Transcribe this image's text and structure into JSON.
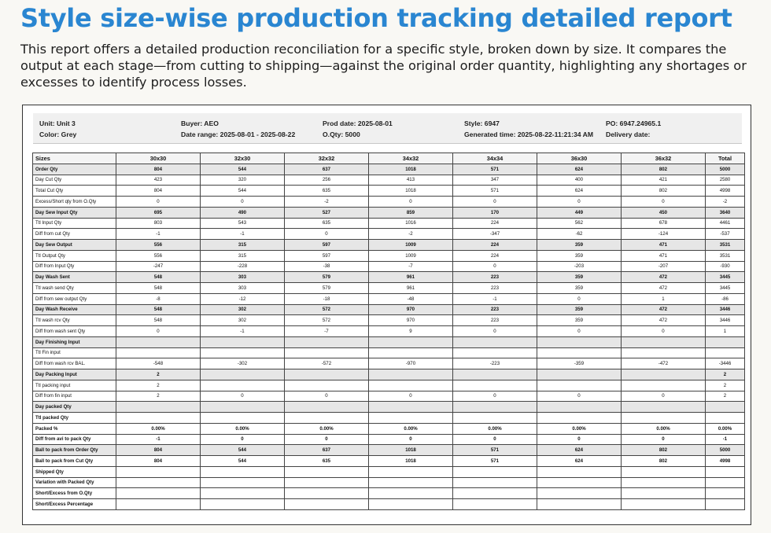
{
  "page": {
    "title": "Style size-wise production tracking detailed report",
    "description": "This report offers a detailed production reconciliation for a specific style, broken down by size. It compares the output at each stage—from cutting to shipping—against the original order quantity, highlighting any shortages or excesses to identify process losses."
  },
  "report_header": {
    "unit": "Unit: Unit 3",
    "color": "Color: Grey",
    "buyer": "Buyer: AEO",
    "date_range": "Date range: 2025-08-01 - 2025-08-22",
    "prod_date": "Prod date: 2025-08-01",
    "order_qty": "O.Qty: 5000",
    "style": "Style: 6947",
    "generated_time": "Generated time: 2025-08-22-11:21:34 AM",
    "po": "PO: 6947.24965.1",
    "delivery_date": "Delivery date:"
  },
  "table": {
    "columns": [
      "Sizes",
      "30x30",
      "32x30",
      "32x32",
      "34x32",
      "34x34",
      "36x30",
      "36x32",
      "Total"
    ],
    "rows": [
      {
        "label": "Order Qty",
        "bold": true,
        "shade": true,
        "values": [
          "804",
          "544",
          "637",
          "1018",
          "571",
          "624",
          "802",
          "5000"
        ]
      },
      {
        "label": "Day Cut Qty",
        "bold": false,
        "shade": false,
        "values": [
          "423",
          "320",
          "256",
          "413",
          "347",
          "400",
          "421",
          "2580"
        ]
      },
      {
        "label": "Total Cut Qty",
        "bold": false,
        "shade": false,
        "values": [
          "804",
          "544",
          "635",
          "1018",
          "571",
          "624",
          "802",
          "4998"
        ]
      },
      {
        "label": "Excess/Short qty from O.Qty",
        "bold": false,
        "shade": false,
        "values": [
          "0",
          "0",
          "-2",
          "0",
          "0",
          "0",
          "0",
          "-2"
        ]
      },
      {
        "label": "Day Sew Input Qty",
        "bold": true,
        "shade": true,
        "values": [
          "695",
          "490",
          "527",
          "859",
          "170",
          "449",
          "450",
          "3640"
        ]
      },
      {
        "label": "Ttl Input Qty",
        "bold": false,
        "shade": false,
        "values": [
          "803",
          "543",
          "635",
          "1016",
          "224",
          "562",
          "678",
          "4461"
        ]
      },
      {
        "label": "Diff from cut Qty",
        "bold": false,
        "shade": false,
        "values": [
          "-1",
          "-1",
          "0",
          "-2",
          "-347",
          "-62",
          "-124",
          "-537"
        ]
      },
      {
        "label": "Day Sew Output",
        "bold": true,
        "shade": true,
        "values": [
          "556",
          "315",
          "597",
          "1009",
          "224",
          "359",
          "471",
          "3531"
        ]
      },
      {
        "label": "Ttl Output Qty",
        "bold": false,
        "shade": false,
        "values": [
          "556",
          "315",
          "597",
          "1009",
          "224",
          "359",
          "471",
          "3531"
        ]
      },
      {
        "label": "Diff from Input Qty",
        "bold": false,
        "shade": false,
        "values": [
          "-247",
          "-228",
          "-38",
          "-7",
          "0",
          "-203",
          "-207",
          "-930"
        ]
      },
      {
        "label": "Day Wash Sent",
        "bold": true,
        "shade": true,
        "values": [
          "548",
          "303",
          "579",
          "961",
          "223",
          "359",
          "472",
          "3445"
        ]
      },
      {
        "label": "Ttl wash send Qty",
        "bold": false,
        "shade": false,
        "values": [
          "548",
          "303",
          "579",
          "961",
          "223",
          "359",
          "472",
          "3445"
        ]
      },
      {
        "label": "Diff from sew output Qty",
        "bold": false,
        "shade": false,
        "values": [
          "-8",
          "-12",
          "-18",
          "-48",
          "-1",
          "0",
          "1",
          "-86"
        ]
      },
      {
        "label": "Day Wash Receive",
        "bold": true,
        "shade": true,
        "values": [
          "548",
          "302",
          "572",
          "970",
          "223",
          "359",
          "472",
          "3446"
        ]
      },
      {
        "label": "Ttl wash rcv Qty",
        "bold": false,
        "shade": false,
        "values": [
          "548",
          "302",
          "572",
          "970",
          "223",
          "359",
          "472",
          "3446"
        ]
      },
      {
        "label": "Diff from wash sent Qty",
        "bold": false,
        "shade": false,
        "values": [
          "0",
          "-1",
          "-7",
          "9",
          "0",
          "0",
          "0",
          "1"
        ]
      },
      {
        "label": "Day Finishing Input",
        "bold": true,
        "shade": true,
        "values": [
          "",
          "",
          "",
          "",
          "",
          "",
          "",
          ""
        ]
      },
      {
        "label": "Ttl Fin input",
        "bold": false,
        "shade": false,
        "values": [
          "",
          "",
          "",
          "",
          "",
          "",
          "",
          ""
        ]
      },
      {
        "label": "Diff from wash rcv BAL.",
        "bold": false,
        "shade": false,
        "values": [
          "-548",
          "-302",
          "-572",
          "-970",
          "-223",
          "-359",
          "-472",
          "-3446"
        ]
      },
      {
        "label": "Day Packing Input",
        "bold": true,
        "shade": true,
        "values": [
          "2",
          "",
          "",
          "",
          "",
          "",
          "",
          "2"
        ]
      },
      {
        "label": "Ttl packing input",
        "bold": false,
        "shade": false,
        "values": [
          "2",
          "",
          "",
          "",
          "",
          "",
          "",
          "2"
        ]
      },
      {
        "label": "Diff from fin input",
        "bold": false,
        "shade": false,
        "values": [
          "2",
          "0",
          "0",
          "0",
          "0",
          "0",
          "0",
          "2"
        ]
      },
      {
        "label": "Day packed Qty",
        "bold": true,
        "shade": true,
        "values": [
          "",
          "",
          "",
          "",
          "",
          "",
          "",
          ""
        ]
      },
      {
        "label": "Ttl packed Qty",
        "bold": true,
        "shade": false,
        "values": [
          "",
          "",
          "",
          "",
          "",
          "",
          "",
          ""
        ]
      },
      {
        "label": "Packed %",
        "bold": true,
        "shade": false,
        "values": [
          "0.00%",
          "0.00%",
          "0.00%",
          "0.00%",
          "0.00%",
          "0.00%",
          "0.00%",
          "0.00%"
        ]
      },
      {
        "label": "Diff from avi to pack Qty",
        "bold": true,
        "shade": false,
        "values": [
          "-1",
          "0",
          "0",
          "0",
          "0",
          "0",
          "0",
          "-1"
        ]
      },
      {
        "label": "Ball to pack from Order Qty",
        "bold": true,
        "shade": true,
        "values": [
          "804",
          "544",
          "637",
          "1018",
          "571",
          "624",
          "802",
          "5000"
        ]
      },
      {
        "label": "Ball to pack from Cut Qty",
        "bold": true,
        "shade": false,
        "values": [
          "804",
          "544",
          "635",
          "1018",
          "571",
          "624",
          "802",
          "4998"
        ]
      },
      {
        "label": "Shipped Qty",
        "bold": true,
        "shade": false,
        "values": [
          "",
          "",
          "",
          "",
          "",
          "",
          "",
          ""
        ]
      },
      {
        "label": "Variation with Packed Qty",
        "bold": true,
        "shade": false,
        "values": [
          "",
          "",
          "",
          "",
          "",
          "",
          "",
          ""
        ]
      },
      {
        "label": "Short/Excess from O.Qty",
        "bold": true,
        "shade": false,
        "values": [
          "",
          "",
          "",
          "",
          "",
          "",
          "",
          ""
        ]
      },
      {
        "label": "Short/Excess Percentage",
        "bold": true,
        "shade": false,
        "values": [
          "",
          "",
          "",
          "",
          "",
          "",
          "",
          ""
        ]
      }
    ]
  }
}
